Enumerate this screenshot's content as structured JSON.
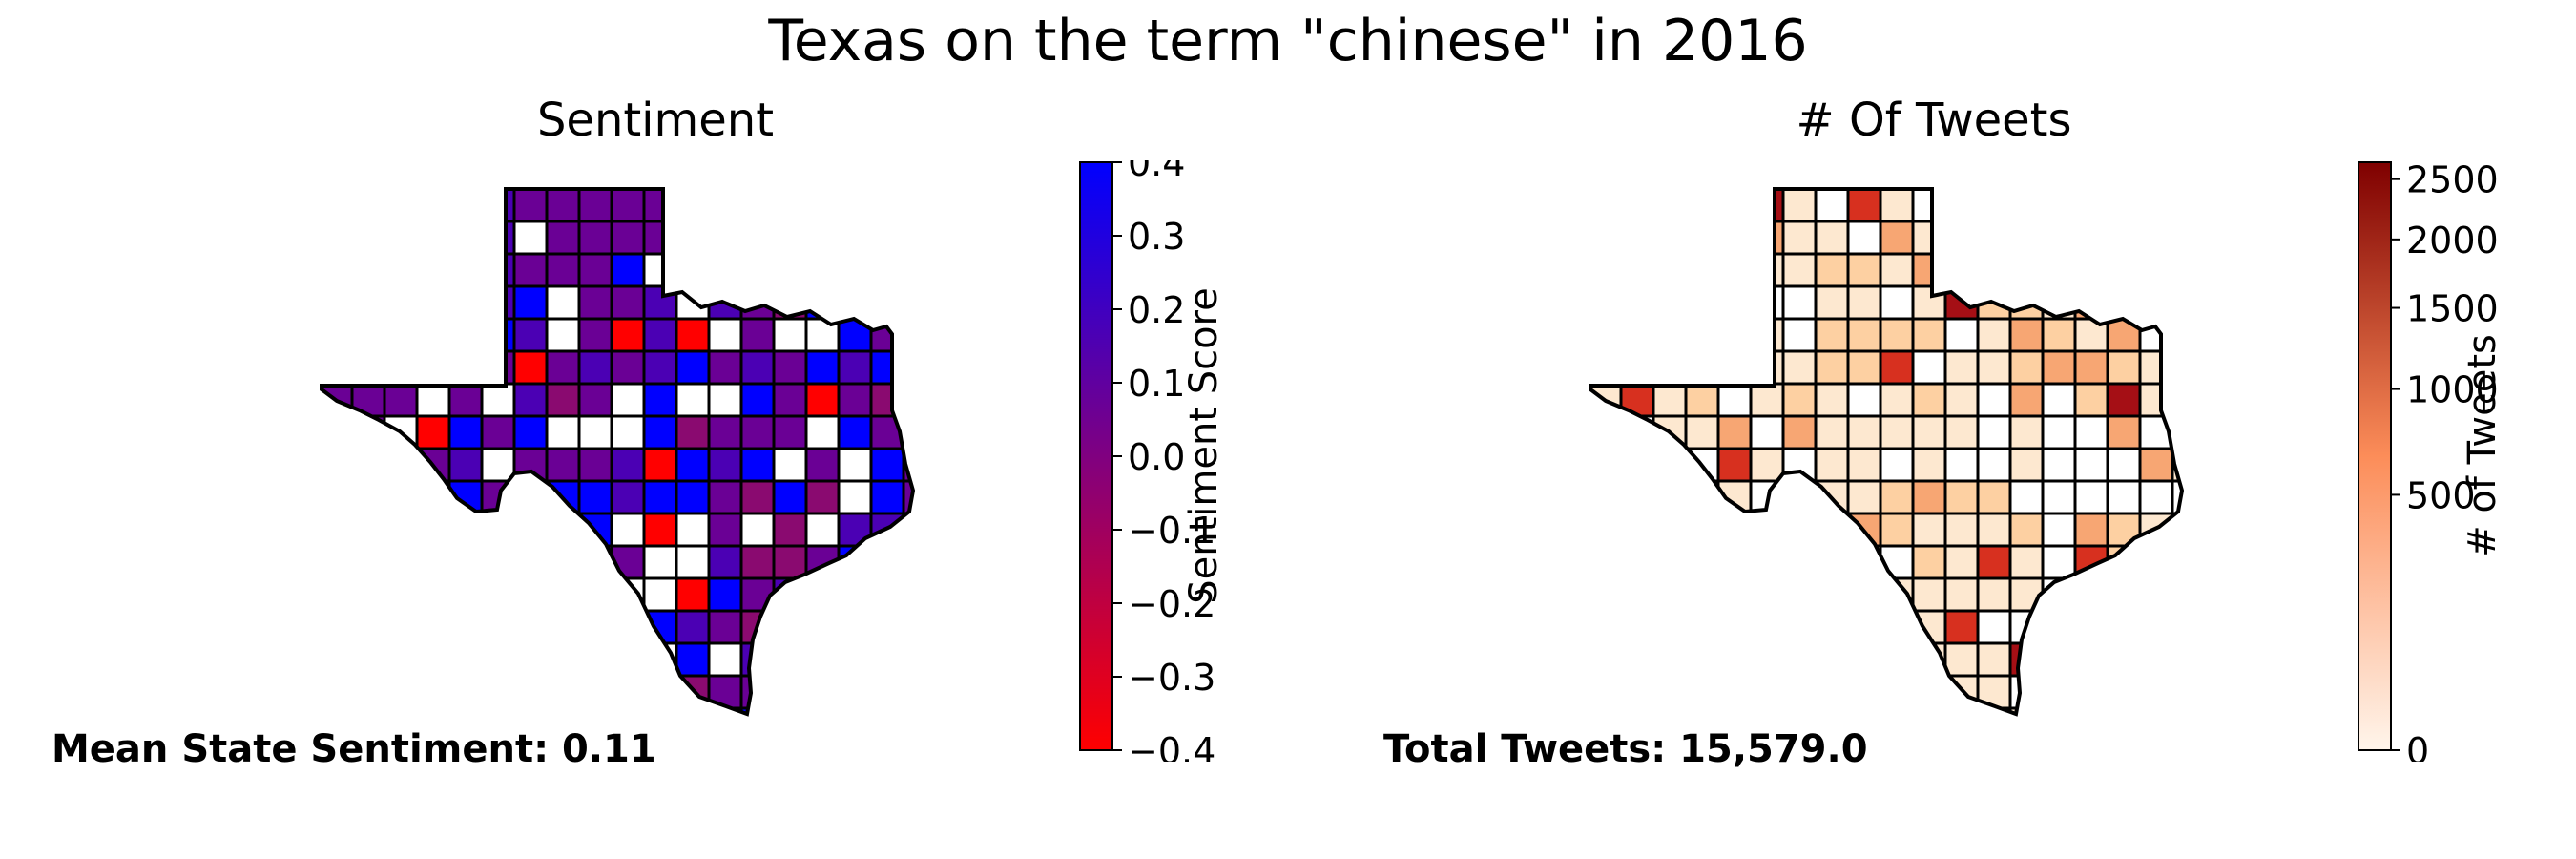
{
  "title": "Texas on the term \"chinese\" in 2016",
  "panels": {
    "sentiment": {
      "title": "Sentiment",
      "stat_text": "Mean State Sentiment: 0.11",
      "colorbar": {
        "label": "Sentiment Score",
        "ticks": [
          "0.4",
          "0.3",
          "0.2",
          "0.1",
          "0.0",
          "−0.1",
          "−0.2",
          "−0.3",
          "−0.4"
        ],
        "tick_values": [
          0.4,
          0.3,
          0.2,
          0.1,
          0.0,
          -0.1,
          -0.2,
          -0.3,
          -0.4
        ],
        "range": [
          -0.4,
          0.4
        ],
        "colors": {
          "low": "#ff0000",
          "mid": "#800080",
          "high": "#0000ff"
        }
      },
      "palette": {
        "strong_positive": "#0000ff",
        "positive": "#4b00b4",
        "neutral": "#6a0095",
        "slightly_negative": "#8a0a70",
        "negative": "#ff0000",
        "no_data": "#ffffff"
      }
    },
    "tweets": {
      "title": "# Of Tweets",
      "stat_text": "Total Tweets: 15,579.0",
      "colorbar": {
        "label": "# of Tweets",
        "ticks": [
          "2500",
          "2000",
          "1500",
          "1000",
          "500",
          "0"
        ],
        "tick_values": [
          2500,
          2000,
          1500,
          1000,
          500,
          0
        ],
        "range": [
          0,
          2650
        ],
        "colors": {
          "low": "#fff5eb",
          "mid": "#fc8d59",
          "high": "#7f0000"
        }
      },
      "palette": {
        "very_high": "#a50f15",
        "high": "#d7301f",
        "medium": "#f7a673",
        "low": "#fdd0a2",
        "very_low": "#fde8d0",
        "no_data": "#ffffff"
      }
    }
  }
}
